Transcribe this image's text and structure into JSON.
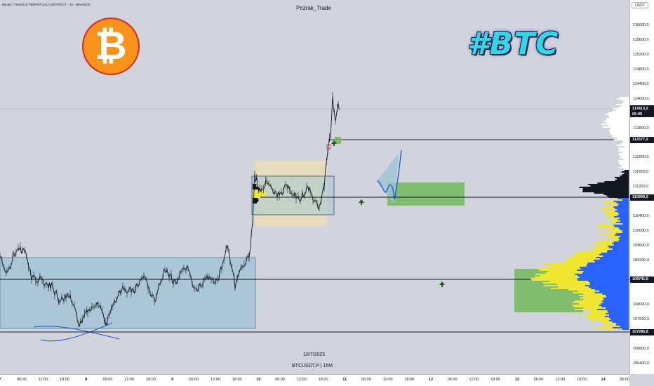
{
  "chart": {
    "symbol_title": "Bitcoin / TetherUS PERPETUAL CONTRACT · 15 · BINANCE",
    "author": "Prizrak_Trade",
    "date_label": "10/7/2025",
    "symbol_interval": "BTCUSDT.P  |  15M",
    "overlay_text": "#BTC",
    "logo_symbol": "₿",
    "currency": "USDT"
  },
  "price_axis": {
    "ticks": [
      "116000,0",
      "115600,0",
      "115200,0",
      "114800,0",
      "114400,0",
      "114000,0",
      "113600,0",
      "112800,0",
      "112400,0",
      "112000,0",
      "111600,0",
      "111200,0",
      "110400,0",
      "110000,0",
      "109600,0",
      "109200,0",
      "108000,0",
      "107600,0",
      "106800,0",
      "106400,0"
    ],
    "tags": [
      {
        "value": "113413,2",
        "sub": "05:05"
      },
      {
        "value": "112577,2",
        "sub": ""
      },
      {
        "value": "110999,3",
        "sub": ""
      },
      {
        "value": "108741,6",
        "sub": ""
      },
      {
        "value": "107285,8",
        "sub": ""
      }
    ]
  },
  "time_axis": {
    "ticks": [
      "7",
      "06:00",
      "12:00",
      "18:00",
      "8",
      "06:00",
      "12:00",
      "18:00",
      "9",
      "06:00",
      "12:00",
      "18:00",
      "10",
      "06:00",
      "12:00",
      "18:00",
      "11",
      "06:00",
      "12:00",
      "18:00",
      "12",
      "06:00",
      "12:00",
      "18:00",
      "13",
      "06:00",
      "12:00",
      "18:00",
      "14",
      "06:00"
    ]
  },
  "chart_data": {
    "type": "candlestick",
    "ylim": [
      106200,
      116200
    ],
    "horizontal_levels": [
      113413.2,
      112577.2,
      110999.3,
      108741.6,
      107285.8
    ],
    "colors": {
      "background": "#d1d4dc",
      "candles": "#131722",
      "range_box": "#9ec3d6",
      "accumulation_box": "#e8ddb5",
      "target_box": "#73b85c",
      "volume_profile_yellow": "#f0e531",
      "volume_profile_blue": "#2962ff",
      "arrow": "#1e5c23",
      "trend_line": "#1e52d8"
    }
  }
}
